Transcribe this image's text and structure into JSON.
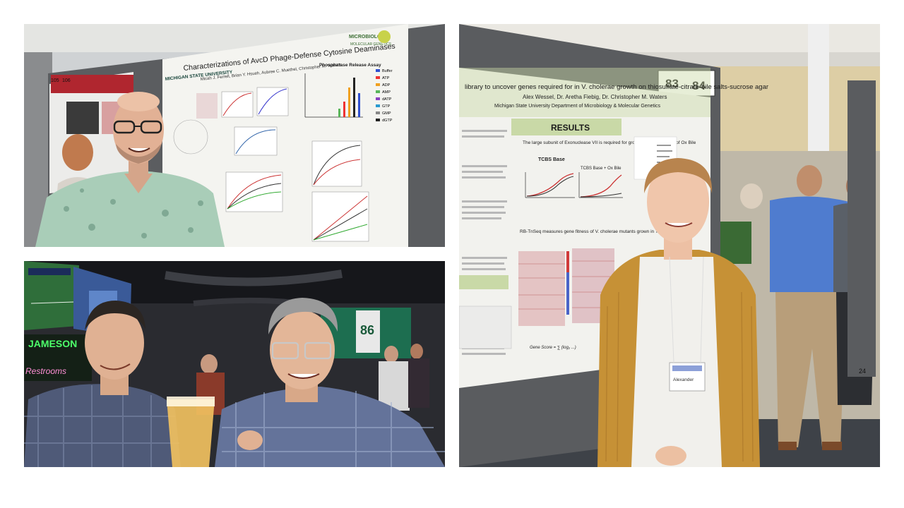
{
  "photos": {
    "poster_session_left": {
      "poster_title": "Characterizations of AvcD Phage-Defense Cytosine Deaminases",
      "poster_authors": "Micah J. Ferrell, Brian Y. Hsueh, Aubree C. Muethel, Christopher M. Waters",
      "university": "MICHIGAN STATE UNIVERSITY",
      "logo_line1": "MICROBIOLOGY",
      "logo_line2": "MOLECULAR GENETICS",
      "assay_title": "Phosphatase Release Assay",
      "legend": [
        "Buffer",
        "ATP",
        "ADP",
        "AMP",
        "dATP",
        "GTP",
        "GMP",
        "dGTP"
      ],
      "board_number": "106",
      "board_number_b": "105"
    },
    "sports_bar": {
      "neon_sign_brand": "JAMESON",
      "neon_sign_restrooms": "Restrooms",
      "jersey_number": "86"
    },
    "poster_session_right": {
      "poster_title": "library to uncover genes required for in V. cholerae growth on thiosulfate-citrate-bile salts-sucrose agar",
      "poster_authors": "Alex Wessel, Dr. Aretha Fiebig, Dr. Christopher M. Waters",
      "poster_affiliation": "Michigan State University Department of Microbiology & Molecular Genetics",
      "results_header": "RESULTS",
      "results_caption": "The large subunit of Exonuclease VII is required for growth in the presence of Ox Bile",
      "chart_title_a": "TCBS Base",
      "chart_title_b": "TCBS Base + Ox Bile",
      "heatmap_caption": "RB-TnSeq measures gene fitness of V. cholerae mutants grown in TCBS media",
      "board_number_a": "83",
      "board_number_b": "84",
      "name_tag": "Alexander",
      "side_number": "24"
    }
  },
  "colors": {
    "poster_white": "#f4f4f0",
    "poster_green": "#c9d9a7",
    "board_gray": "#5b5d60",
    "shirt_mint": "#a9cdb8",
    "cardigan_mustard": "#c69136",
    "neon_green": "#4dff6a"
  }
}
